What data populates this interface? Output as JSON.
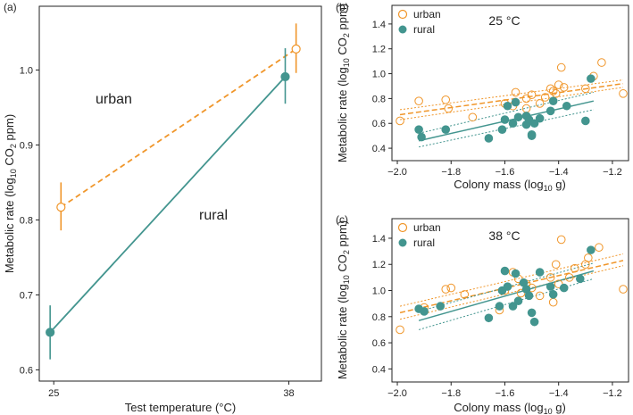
{
  "colors": {
    "urban": "#f0962a",
    "rural": "#43958f",
    "axis": "#222222"
  },
  "chart_data": [
    {
      "panel": "a",
      "type": "line",
      "panel_label": "(a)",
      "xlabel": "Test temperature (°C)",
      "ylabel_main": "Metabolic rate (log",
      "ylabel_sub": "10",
      "ylabel_tail": " CO",
      "ylabel_sub2": "2",
      "ylabel_end": " ppm)",
      "x_ticks": [
        25,
        38
      ],
      "xlim": [
        24.2,
        39.8
      ],
      "ylim": [
        0.585,
        1.085
      ],
      "y_ticks": [
        0.6,
        0.7,
        0.8,
        0.9,
        1.0
      ],
      "y_tick_labels": [
        "0.6",
        "0.7",
        "0.8",
        "0.9",
        "1.0"
      ],
      "series": [
        {
          "name": "urban",
          "label": "urban",
          "marker": "open-circle",
          "line": "dashed",
          "x": [
            25.4,
            38.4
          ],
          "y": [
            0.817,
            1.028
          ],
          "err_low": [
            0.786,
            0.996
          ],
          "err_high": [
            0.85,
            1.062
          ]
        },
        {
          "name": "rural",
          "label": "rural",
          "marker": "filled-circle",
          "line": "solid",
          "x": [
            24.8,
            37.8
          ],
          "y": [
            0.65,
            0.991
          ],
          "err_low": [
            0.614,
            0.955
          ],
          "err_high": [
            0.686,
            1.029
          ]
        }
      ]
    },
    {
      "panel": "b",
      "type": "scatter",
      "panel_label": "(b)",
      "title": "25 °C",
      "xlabel_main": "Colony mass (log",
      "xlabel_sub": "10",
      "xlabel_tail": " g)",
      "ylabel_main": "Metabolic rate (log",
      "ylabel_sub": "10",
      "ylabel_tail": " CO",
      "ylabel_sub2": "2",
      "ylabel_end": " ppm)",
      "xlim": [
        -2.02,
        -1.14
      ],
      "ylim": [
        0.3,
        1.55
      ],
      "x_ticks": [
        -2.0,
        -1.8,
        -1.6,
        -1.4,
        -1.2
      ],
      "x_tick_labels": [
        "−2.0",
        "−1.8",
        "−1.6",
        "−1.4",
        "−1.2"
      ],
      "y_ticks": [
        0.4,
        0.6,
        0.8,
        1.0,
        1.2,
        1.4
      ],
      "y_tick_labels": [
        "0.4",
        "0.6",
        "0.8",
        "1.0",
        "1.2",
        "1.4"
      ],
      "legend": [
        "urban",
        "rural"
      ],
      "series": [
        {
          "name": "urban",
          "label": "urban",
          "marker": "open-circle",
          "points": [
            [
              -1.99,
              0.62
            ],
            [
              -1.92,
              0.78
            ],
            [
              -1.82,
              0.79
            ],
            [
              -1.81,
              0.72
            ],
            [
              -1.72,
              0.65
            ],
            [
              -1.6,
              0.76
            ],
            [
              -1.57,
              0.74
            ],
            [
              -1.56,
              0.85
            ],
            [
              -1.52,
              0.8
            ],
            [
              -1.5,
              0.83
            ],
            [
              -1.47,
              0.76
            ],
            [
              -1.45,
              0.81
            ],
            [
              -1.43,
              0.88
            ],
            [
              -1.42,
              0.86
            ],
            [
              -1.41,
              0.84
            ],
            [
              -1.4,
              0.91
            ],
            [
              -1.39,
              1.05
            ],
            [
              -1.38,
              0.89
            ],
            [
              -1.3,
              0.88
            ],
            [
              -1.27,
              0.98
            ],
            [
              -1.24,
              1.09
            ],
            [
              -1.16,
              0.84
            ],
            [
              -1.52,
              0.72
            ]
          ],
          "fit": [
            [
              -1.99,
              0.67
            ],
            [
              -1.16,
              0.92
            ]
          ],
          "ci_upper": [
            [
              -1.99,
              0.71
            ],
            [
              -1.16,
              0.95
            ]
          ],
          "ci_lower": [
            [
              -1.99,
              0.63
            ],
            [
              -1.16,
              0.89
            ]
          ]
        },
        {
          "name": "rural",
          "label": "rural",
          "marker": "filled-circle",
          "points": [
            [
              -1.92,
              0.55
            ],
            [
              -1.91,
              0.49
            ],
            [
              -1.82,
              0.55
            ],
            [
              -1.66,
              0.48
            ],
            [
              -1.61,
              0.55
            ],
            [
              -1.6,
              0.63
            ],
            [
              -1.59,
              0.74
            ],
            [
              -1.57,
              0.6
            ],
            [
              -1.56,
              0.77
            ],
            [
              -1.55,
              0.65
            ],
            [
              -1.52,
              0.66
            ],
            [
              -1.52,
              0.59
            ],
            [
              -1.51,
              0.63
            ],
            [
              -1.5,
              0.51
            ],
            [
              -1.5,
              0.5
            ],
            [
              -1.49,
              0.6
            ],
            [
              -1.47,
              0.64
            ],
            [
              -1.43,
              0.7
            ],
            [
              -1.42,
              0.78
            ],
            [
              -1.37,
              0.74
            ],
            [
              -1.3,
              0.62
            ],
            [
              -1.28,
              0.96
            ]
          ],
          "fit": [
            [
              -1.92,
              0.46
            ],
            [
              -1.27,
              0.78
            ]
          ],
          "ci_upper": [
            [
              -1.92,
              0.52
            ],
            [
              -1.27,
              0.85
            ]
          ],
          "ci_lower": [
            [
              -1.92,
              0.41
            ],
            [
              -1.27,
              0.71
            ]
          ]
        }
      ]
    },
    {
      "panel": "c",
      "type": "scatter",
      "panel_label": "(c)",
      "title": "38 °C",
      "xlabel_main": "Colony mass (log",
      "xlabel_sub": "10",
      "xlabel_tail": " g)",
      "ylabel_main": "Metabolic rate (log",
      "ylabel_sub": "10",
      "ylabel_tail": " CO",
      "ylabel_sub2": "2",
      "ylabel_end": " ppm)",
      "xlim": [
        -2.02,
        -1.14
      ],
      "ylim": [
        0.3,
        1.55
      ],
      "x_ticks": [
        -2.0,
        -1.8,
        -1.6,
        -1.4,
        -1.2
      ],
      "x_tick_labels": [
        "−2.0",
        "−1.8",
        "−1.6",
        "−1.4",
        "−1.2"
      ],
      "y_ticks": [
        0.4,
        0.6,
        0.8,
        1.0,
        1.2,
        1.4
      ],
      "y_tick_labels": [
        "0.4",
        "0.6",
        "0.8",
        "1.0",
        "1.2",
        "1.4"
      ],
      "legend": [
        "urban",
        "rural"
      ],
      "series": [
        {
          "name": "urban",
          "label": "urban",
          "marker": "open-circle",
          "points": [
            [
              -1.99,
              0.7
            ],
            [
              -1.9,
              0.87
            ],
            [
              -1.82,
              1.01
            ],
            [
              -1.8,
              1.02
            ],
            [
              -1.75,
              0.97
            ],
            [
              -1.62,
              0.85
            ],
            [
              -1.6,
              1.0
            ],
            [
              -1.57,
              1.14
            ],
            [
              -1.55,
              1.09
            ],
            [
              -1.54,
              0.98
            ],
            [
              -1.52,
              1.05
            ],
            [
              -1.5,
              1.02
            ],
            [
              -1.47,
              0.96
            ],
            [
              -1.43,
              1.1
            ],
            [
              -1.42,
              0.91
            ],
            [
              -1.41,
              1.2
            ],
            [
              -1.39,
              1.39
            ],
            [
              -1.36,
              1.1
            ],
            [
              -1.34,
              1.17
            ],
            [
              -1.3,
              1.2
            ],
            [
              -1.29,
              1.25
            ],
            [
              -1.25,
              1.33
            ],
            [
              -1.16,
              1.01
            ],
            [
              -1.4,
              1.05
            ]
          ],
          "fit": [
            [
              -1.99,
              0.83
            ],
            [
              -1.16,
              1.23
            ]
          ],
          "ci_upper": [
            [
              -1.99,
              0.88
            ],
            [
              -1.16,
              1.28
            ]
          ],
          "ci_lower": [
            [
              -1.99,
              0.78
            ],
            [
              -1.16,
              1.19
            ]
          ]
        },
        {
          "name": "rural",
          "label": "rural",
          "marker": "filled-circle",
          "points": [
            [
              -1.92,
              0.86
            ],
            [
              -1.9,
              0.84
            ],
            [
              -1.84,
              0.88
            ],
            [
              -1.66,
              0.79
            ],
            [
              -1.62,
              0.88
            ],
            [
              -1.61,
              1.0
            ],
            [
              -1.6,
              1.15
            ],
            [
              -1.59,
              1.03
            ],
            [
              -1.57,
              0.88
            ],
            [
              -1.56,
              1.13
            ],
            [
              -1.55,
              0.92
            ],
            [
              -1.53,
              1.06
            ],
            [
              -1.52,
              1.01
            ],
            [
              -1.51,
              0.96
            ],
            [
              -1.5,
              0.83
            ],
            [
              -1.49,
              0.76
            ],
            [
              -1.47,
              1.14
            ],
            [
              -1.43,
              1.03
            ],
            [
              -1.42,
              0.97
            ],
            [
              -1.38,
              1.02
            ],
            [
              -1.32,
              1.09
            ],
            [
              -1.28,
              1.31
            ]
          ],
          "fit": [
            [
              -1.92,
              0.77
            ],
            [
              -1.27,
              1.15
            ]
          ],
          "ci_upper": [
            [
              -1.92,
              0.84
            ],
            [
              -1.27,
              1.21
            ]
          ],
          "ci_lower": [
            [
              -1.92,
              0.7
            ],
            [
              -1.27,
              1.09
            ]
          ]
        }
      ]
    }
  ]
}
